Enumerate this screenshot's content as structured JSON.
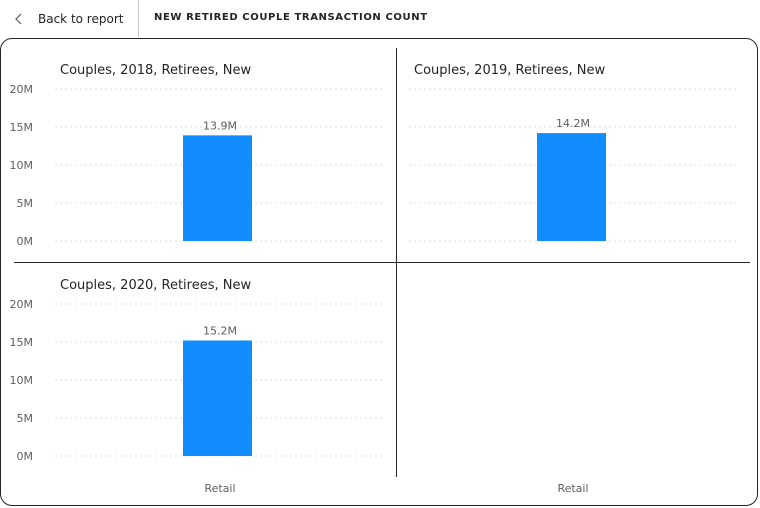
{
  "header": {
    "back_label": "Back to report",
    "title": "NEW RETIRED COUPLE TRANSACTION COUNT"
  },
  "colors": {
    "bar": "#118DFF",
    "grid": "#e1dfdd"
  },
  "chart_data": [
    {
      "type": "bar",
      "title": "Couples, 2018, Retirees, New",
      "categories": [
        "Retail"
      ],
      "values": [
        13.9
      ],
      "data_labels": [
        "13.9M"
      ],
      "yticks": [
        "0M",
        "5M",
        "10M",
        "15M",
        "20M"
      ],
      "ylim": [
        0,
        20
      ],
      "grid": true,
      "show_xlabel": false
    },
    {
      "type": "bar",
      "title": "Couples, 2019, Retirees, New",
      "categories": [
        "Retail"
      ],
      "values": [
        14.2
      ],
      "data_labels": [
        "14.2M"
      ],
      "yticks": [],
      "ylim": [
        0,
        20
      ],
      "grid": true,
      "show_xlabel": false
    },
    {
      "type": "bar",
      "title": "Couples, 2020, Retirees, New",
      "categories": [
        "Retail"
      ],
      "values": [
        15.2
      ],
      "data_labels": [
        "15.2M"
      ],
      "yticks": [
        "0M",
        "5M",
        "10M",
        "15M",
        "20M"
      ],
      "ylim": [
        0,
        20
      ],
      "grid": true,
      "show_xlabel": true
    }
  ],
  "empty_panel": {
    "x_label": "Retail"
  }
}
